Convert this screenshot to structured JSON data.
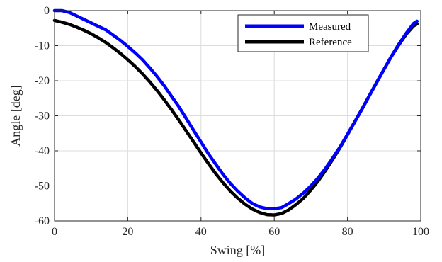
{
  "chart_data": {
    "type": "line",
    "xlabel": "Swing [%]",
    "ylabel": "Angle [deg]",
    "xlim": [
      0,
      100
    ],
    "ylim": [
      -60,
      0
    ],
    "xticks": [
      0,
      20,
      40,
      60,
      80,
      100
    ],
    "yticks": [
      0,
      -10,
      -20,
      -30,
      -40,
      -50,
      -60
    ],
    "grid": true,
    "legend_position": "top-right",
    "series": [
      {
        "name": "Measured",
        "color": "#0000ff",
        "x": [
          0,
          2,
          4,
          6,
          8,
          10,
          12,
          14,
          16,
          18,
          20,
          22,
          24,
          26,
          28,
          30,
          32,
          34,
          36,
          38,
          40,
          42,
          44,
          46,
          48,
          50,
          52,
          54,
          56,
          58,
          60,
          62,
          64,
          66,
          68,
          70,
          72,
          74,
          76,
          78,
          80,
          82,
          84,
          86,
          88,
          90,
          92,
          94,
          96,
          98,
          99
        ],
        "y": [
          0,
          0,
          -0.5,
          -1.5,
          -2.5,
          -3.5,
          -4.5,
          -5.5,
          -7,
          -8.5,
          -10.2,
          -12,
          -14,
          -16.3,
          -18.8,
          -21.5,
          -24.5,
          -27.5,
          -30.8,
          -34.2,
          -37.5,
          -40.8,
          -43.8,
          -46.7,
          -49.3,
          -51.5,
          -53.4,
          -55,
          -56,
          -56.5,
          -56.5,
          -56.2,
          -55,
          -53.7,
          -52,
          -50,
          -47.7,
          -45,
          -42,
          -38.8,
          -35.3,
          -31.7,
          -28,
          -24.2,
          -20.4,
          -16.7,
          -13,
          -9.6,
          -6.5,
          -3.7,
          -3
        ]
      },
      {
        "name": "Reference",
        "color": "#000000",
        "x": [
          0,
          2,
          4,
          6,
          8,
          10,
          12,
          14,
          16,
          18,
          20,
          22,
          24,
          26,
          28,
          30,
          32,
          34,
          36,
          38,
          40,
          42,
          44,
          46,
          48,
          50,
          52,
          54,
          56,
          58,
          60,
          62,
          64,
          66,
          68,
          70,
          72,
          74,
          76,
          78,
          80,
          82,
          84,
          86,
          88,
          90,
          92,
          94,
          96,
          98,
          99
        ],
        "y": [
          -2.8,
          -3.3,
          -3.9,
          -4.7,
          -5.6,
          -6.6,
          -7.8,
          -9.1,
          -10.6,
          -12.2,
          -14,
          -15.9,
          -18,
          -20.3,
          -22.8,
          -25.5,
          -28.3,
          -31.3,
          -34.4,
          -37.5,
          -40.6,
          -43.6,
          -46.5,
          -49.1,
          -51.5,
          -53.5,
          -55.2,
          -56.6,
          -57.6,
          -58.2,
          -58.3,
          -57.9,
          -56.8,
          -55.3,
          -53.5,
          -51.2,
          -48.6,
          -45.6,
          -42.4,
          -39,
          -35.4,
          -31.7,
          -28,
          -24.2,
          -20.4,
          -16.7,
          -13.1,
          -9.8,
          -6.8,
          -4.4,
          -3.8
        ]
      }
    ]
  }
}
